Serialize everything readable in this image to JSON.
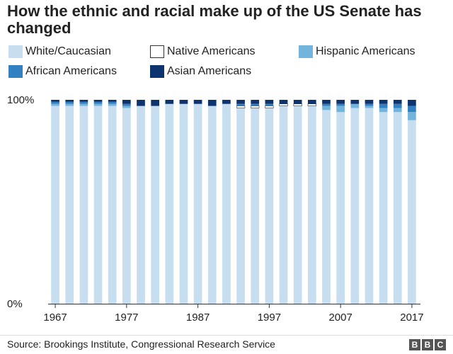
{
  "title": "How the ethnic and racial make up of the US Senate has changed",
  "source": "Source: Brookings Institute, Congressional Research Service",
  "logo": [
    "B",
    "B",
    "C"
  ],
  "chart_data": {
    "type": "bar",
    "stacked": true,
    "x_ticks": [
      "1967",
      "1977",
      "1987",
      "1997",
      "2007",
      "2017"
    ],
    "y_ticks": [
      "0%",
      "100%"
    ],
    "ylim": [
      0,
      100
    ],
    "legend_position": "top",
    "grid": false,
    "categories": [
      "1967",
      "1969",
      "1971",
      "1973",
      "1975",
      "1977",
      "1979",
      "1981",
      "1983",
      "1985",
      "1987",
      "1989",
      "1991",
      "1993",
      "1995",
      "1997",
      "1999",
      "2001",
      "2003",
      "2005",
      "2007",
      "2009",
      "2011",
      "2013",
      "2015",
      "2017"
    ],
    "series": [
      {
        "name": "White/Caucasian",
        "color": "#c7ddf0",
        "values": [
          97,
          97,
          97,
          97,
          97,
          96,
          97,
          97,
          98,
          98,
          98,
          97,
          98,
          96,
          96,
          96,
          97,
          97,
          97,
          95,
          94,
          96,
          96,
          94,
          94,
          90
        ]
      },
      {
        "name": "Native Americans",
        "color": "#ffffff",
        "border": "#333333",
        "values": [
          0,
          0,
          0,
          0,
          0,
          0,
          0,
          0,
          0,
          0,
          0,
          0,
          0,
          1,
          1,
          1,
          1,
          1,
          1,
          0,
          0,
          0,
          0,
          0,
          0,
          0
        ]
      },
      {
        "name": "Hispanic Americans",
        "color": "#73b4dd",
        "values": [
          1,
          1,
          1,
          1,
          1,
          1,
          0,
          0,
          0,
          0,
          0,
          0,
          0,
          0,
          0,
          0,
          0,
          0,
          0,
          2,
          3,
          2,
          1,
          2,
          2,
          4
        ]
      },
      {
        "name": "African Americans",
        "color": "#3181c2",
        "values": [
          1,
          1,
          1,
          1,
          1,
          1,
          0,
          0,
          0,
          0,
          0,
          0,
          0,
          1,
          1,
          1,
          0,
          0,
          0,
          1,
          1,
          0,
          1,
          2,
          2,
          3
        ]
      },
      {
        "name": "Asian Americans",
        "color": "#0e3470",
        "values": [
          1,
          1,
          1,
          1,
          1,
          2,
          3,
          3,
          2,
          2,
          2,
          3,
          2,
          2,
          2,
          2,
          2,
          2,
          2,
          2,
          2,
          2,
          2,
          2,
          2,
          3
        ]
      }
    ]
  }
}
